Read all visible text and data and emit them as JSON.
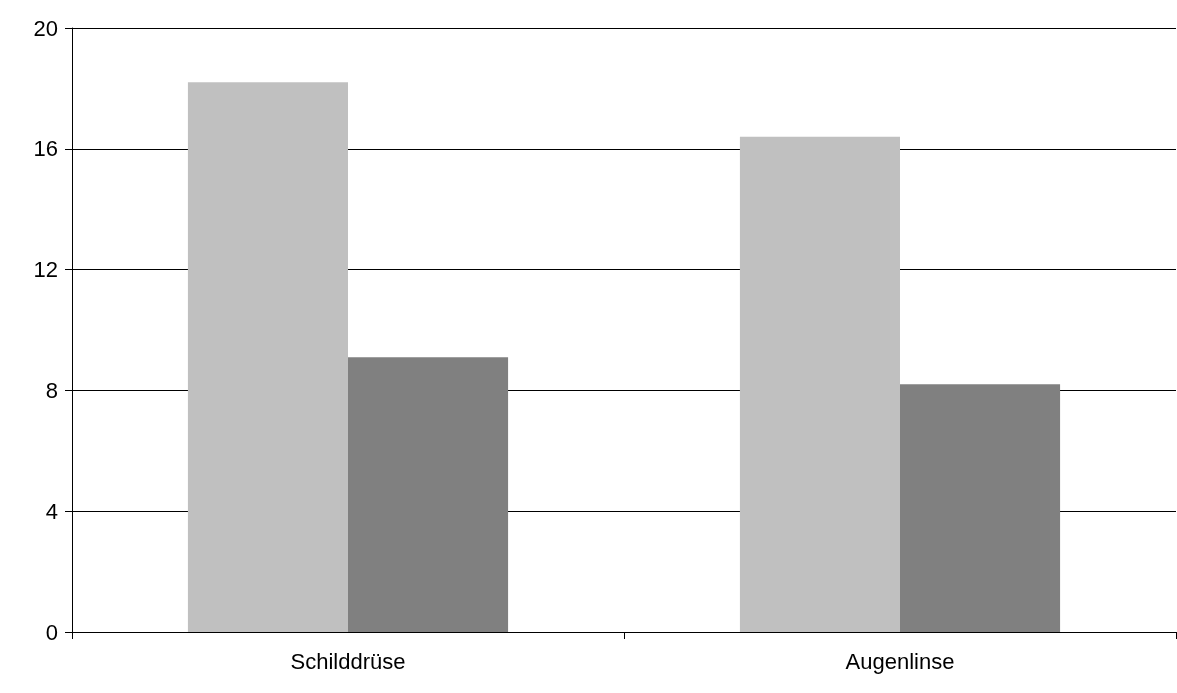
{
  "chart_data": {
    "type": "bar",
    "categories": [
      "Schilddrüse",
      "Augenlinse"
    ],
    "series": [
      {
        "color": "#c0c0c0",
        "values": [
          18.2,
          16.4
        ]
      },
      {
        "color": "#808080",
        "values": [
          9.1,
          8.2
        ]
      }
    ],
    "ylim": [
      0,
      20
    ],
    "yticks": [
      0,
      4,
      8,
      12,
      16,
      20
    ],
    "grid": "y"
  }
}
